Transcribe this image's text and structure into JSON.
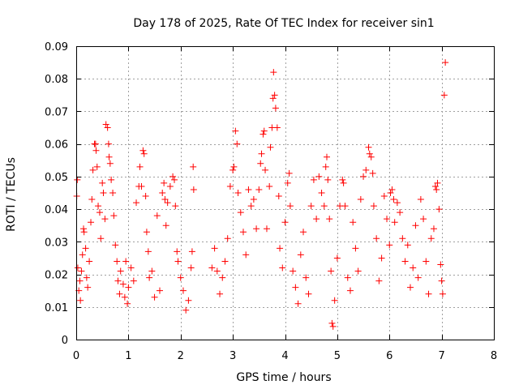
{
  "chart_data": {
    "type": "scatter",
    "title": "Day 178 of 2025, Rate Of TEC Index for receiver sin1",
    "xlabel": "GPS time / hours",
    "ylabel": "ROTI / TECUs",
    "xlim": [
      0,
      8
    ],
    "ylim": [
      0,
      0.09
    ],
    "grid": true,
    "marker": "+",
    "color": "#ff0000",
    "x_ticks": [
      {
        "value": 0,
        "label": "0"
      },
      {
        "value": 1,
        "label": "1"
      },
      {
        "value": 2,
        "label": "2"
      },
      {
        "value": 3,
        "label": "3"
      },
      {
        "value": 4,
        "label": "4"
      },
      {
        "value": 5,
        "label": "5"
      },
      {
        "value": 6,
        "label": "6"
      },
      {
        "value": 7,
        "label": "7"
      },
      {
        "value": 8,
        "label": "8"
      }
    ],
    "y_ticks": [
      {
        "value": 0,
        "label": "0"
      },
      {
        "value": 0.01,
        "label": "0.01"
      },
      {
        "value": 0.02,
        "label": "0.02"
      },
      {
        "value": 0.03,
        "label": "0.03"
      },
      {
        "value": 0.04,
        "label": "0.04"
      },
      {
        "value": 0.05,
        "label": "0.05"
      },
      {
        "value": 0.06,
        "label": "0.06"
      },
      {
        "value": 0.07,
        "label": "0.07"
      },
      {
        "value": 0.08,
        "label": "0.08"
      },
      {
        "value": 0.09,
        "label": "0.09"
      }
    ],
    "series": [
      {
        "name": "ROTI",
        "points": [
          [
            0.01,
            0.044
          ],
          [
            0.02,
            0.049
          ],
          [
            0.03,
            0.022
          ],
          [
            0.05,
            0.015
          ],
          [
            0.07,
            0.018
          ],
          [
            0.08,
            0.012
          ],
          [
            0.1,
            0.021
          ],
          [
            0.12,
            0.026
          ],
          [
            0.14,
            0.034
          ],
          [
            0.15,
            0.033
          ],
          [
            0.18,
            0.028
          ],
          [
            0.2,
            0.019
          ],
          [
            0.22,
            0.016
          ],
          [
            0.25,
            0.024
          ],
          [
            0.28,
            0.036
          ],
          [
            0.3,
            0.043
          ],
          [
            0.32,
            0.052
          ],
          [
            0.35,
            0.06
          ],
          [
            0.37,
            0.06
          ],
          [
            0.38,
            0.058
          ],
          [
            0.4,
            0.053
          ],
          [
            0.42,
            0.041
          ],
          [
            0.45,
            0.039
          ],
          [
            0.47,
            0.031
          ],
          [
            0.5,
            0.048
          ],
          [
            0.52,
            0.045
          ],
          [
            0.55,
            0.037
          ],
          [
            0.57,
            0.066
          ],
          [
            0.6,
            0.065
          ],
          [
            0.62,
            0.06
          ],
          [
            0.63,
            0.056
          ],
          [
            0.65,
            0.054
          ],
          [
            0.67,
            0.049
          ],
          [
            0.7,
            0.045
          ],
          [
            0.72,
            0.038
          ],
          [
            0.75,
            0.029
          ],
          [
            0.78,
            0.024
          ],
          [
            0.8,
            0.018
          ],
          [
            0.83,
            0.014
          ],
          [
            0.85,
            0.021
          ],
          [
            0.9,
            0.017
          ],
          [
            0.93,
            0.013
          ],
          [
            0.95,
            0.024
          ],
          [
            0.98,
            0.011
          ],
          [
            1.0,
            0.016
          ],
          [
            1.05,
            0.022
          ],
          [
            1.1,
            0.018
          ],
          [
            1.15,
            0.042
          ],
          [
            1.2,
            0.047
          ],
          [
            1.22,
            0.053
          ],
          [
            1.25,
            0.047
          ],
          [
            1.28,
            0.058
          ],
          [
            1.3,
            0.057
          ],
          [
            1.33,
            0.044
          ],
          [
            1.35,
            0.033
          ],
          [
            1.38,
            0.027
          ],
          [
            1.4,
            0.019
          ],
          [
            1.45,
            0.021
          ],
          [
            1.5,
            0.013
          ],
          [
            1.55,
            0.038
          ],
          [
            1.6,
            0.015
          ],
          [
            1.65,
            0.045
          ],
          [
            1.68,
            0.048
          ],
          [
            1.7,
            0.043
          ],
          [
            1.72,
            0.035
          ],
          [
            1.75,
            0.042
          ],
          [
            1.8,
            0.047
          ],
          [
            1.85,
            0.05
          ],
          [
            1.88,
            0.049
          ],
          [
            1.9,
            0.041
          ],
          [
            1.93,
            0.027
          ],
          [
            1.95,
            0.024
          ],
          [
            2.0,
            0.019
          ],
          [
            2.05,
            0.015
          ],
          [
            2.1,
            0.009
          ],
          [
            2.15,
            0.012
          ],
          [
            2.2,
            0.022
          ],
          [
            2.22,
            0.027
          ],
          [
            2.24,
            0.053
          ],
          [
            2.25,
            0.046
          ],
          [
            2.6,
            0.022
          ],
          [
            2.65,
            0.028
          ],
          [
            2.7,
            0.021
          ],
          [
            2.75,
            0.014
          ],
          [
            2.8,
            0.019
          ],
          [
            2.85,
            0.024
          ],
          [
            2.9,
            0.031
          ],
          [
            2.95,
            0.047
          ],
          [
            3.0,
            0.052
          ],
          [
            3.02,
            0.053
          ],
          [
            3.05,
            0.064
          ],
          [
            3.08,
            0.06
          ],
          [
            3.1,
            0.045
          ],
          [
            3.15,
            0.039
          ],
          [
            3.2,
            0.033
          ],
          [
            3.25,
            0.026
          ],
          [
            3.3,
            0.046
          ],
          [
            3.35,
            0.041
          ],
          [
            3.4,
            0.043
          ],
          [
            3.45,
            0.034
          ],
          [
            3.5,
            0.046
          ],
          [
            3.53,
            0.054
          ],
          [
            3.55,
            0.057
          ],
          [
            3.58,
            0.063
          ],
          [
            3.6,
            0.064
          ],
          [
            3.62,
            0.052
          ],
          [
            3.65,
            0.034
          ],
          [
            3.7,
            0.047
          ],
          [
            3.72,
            0.059
          ],
          [
            3.75,
            0.065
          ],
          [
            3.77,
            0.074
          ],
          [
            3.78,
            0.082
          ],
          [
            3.8,
            0.075
          ],
          [
            3.82,
            0.071
          ],
          [
            3.85,
            0.065
          ],
          [
            3.88,
            0.044
          ],
          [
            3.9,
            0.028
          ],
          [
            3.95,
            0.022
          ],
          [
            4.0,
            0.036
          ],
          [
            4.05,
            0.048
          ],
          [
            4.08,
            0.051
          ],
          [
            4.1,
            0.041
          ],
          [
            4.15,
            0.021
          ],
          [
            4.2,
            0.016
          ],
          [
            4.25,
            0.011
          ],
          [
            4.3,
            0.026
          ],
          [
            4.35,
            0.033
          ],
          [
            4.4,
            0.019
          ],
          [
            4.45,
            0.014
          ],
          [
            4.5,
            0.041
          ],
          [
            4.55,
            0.049
          ],
          [
            4.6,
            0.037
          ],
          [
            4.65,
            0.05
          ],
          [
            4.7,
            0.045
          ],
          [
            4.75,
            0.041
          ],
          [
            4.78,
            0.053
          ],
          [
            4.8,
            0.056
          ],
          [
            4.82,
            0.049
          ],
          [
            4.85,
            0.037
          ],
          [
            4.88,
            0.021
          ],
          [
            4.9,
            0.005
          ],
          [
            4.92,
            0.004
          ],
          [
            4.95,
            0.012
          ],
          [
            5.0,
            0.025
          ],
          [
            5.05,
            0.041
          ],
          [
            5.1,
            0.049
          ],
          [
            5.12,
            0.048
          ],
          [
            5.15,
            0.041
          ],
          [
            5.2,
            0.019
          ],
          [
            5.25,
            0.015
          ],
          [
            5.3,
            0.036
          ],
          [
            5.35,
            0.028
          ],
          [
            5.4,
            0.021
          ],
          [
            5.45,
            0.043
          ],
          [
            5.5,
            0.05
          ],
          [
            5.55,
            0.052
          ],
          [
            5.6,
            0.059
          ],
          [
            5.62,
            0.057
          ],
          [
            5.65,
            0.056
          ],
          [
            5.68,
            0.051
          ],
          [
            5.7,
            0.041
          ],
          [
            5.75,
            0.031
          ],
          [
            5.8,
            0.018
          ],
          [
            5.85,
            0.025
          ],
          [
            5.9,
            0.044
          ],
          [
            5.95,
            0.037
          ],
          [
            6.0,
            0.029
          ],
          [
            6.02,
            0.045
          ],
          [
            6.05,
            0.046
          ],
          [
            6.08,
            0.043
          ],
          [
            6.1,
            0.036
          ],
          [
            6.15,
            0.042
          ],
          [
            6.2,
            0.039
          ],
          [
            6.25,
            0.031
          ],
          [
            6.3,
            0.024
          ],
          [
            6.35,
            0.029
          ],
          [
            6.4,
            0.016
          ],
          [
            6.45,
            0.022
          ],
          [
            6.5,
            0.035
          ],
          [
            6.55,
            0.019
          ],
          [
            6.6,
            0.043
          ],
          [
            6.65,
            0.037
          ],
          [
            6.7,
            0.024
          ],
          [
            6.75,
            0.014
          ],
          [
            6.8,
            0.031
          ],
          [
            6.85,
            0.034
          ],
          [
            6.88,
            0.047
          ],
          [
            6.9,
            0.046
          ],
          [
            6.92,
            0.048
          ],
          [
            6.95,
            0.04
          ],
          [
            6.98,
            0.023
          ],
          [
            7.0,
            0.018
          ],
          [
            7.02,
            0.014
          ],
          [
            7.05,
            0.075
          ],
          [
            7.07,
            0.085
          ]
        ]
      }
    ]
  }
}
